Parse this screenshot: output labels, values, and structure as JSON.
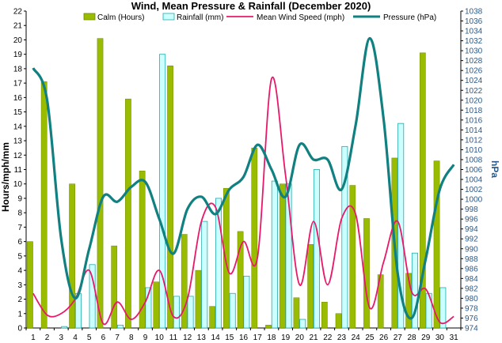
{
  "chart_data": {
    "type": "bar+line",
    "title": "Wind, Mean Pressure & Rainfall (December 2020)",
    "ylabel_left": "Hours/mph/mm",
    "ylabel_right": "hPa",
    "xlabel": "",
    "categories": [
      "1",
      "2",
      "3",
      "4",
      "5",
      "6",
      "7",
      "8",
      "9",
      "10",
      "11",
      "12",
      "13",
      "14",
      "15",
      "16",
      "17",
      "18",
      "19",
      "20",
      "21",
      "22",
      "23",
      "24",
      "25",
      "26",
      "27",
      "28",
      "29",
      "30",
      "31"
    ],
    "ylim_left": [
      0,
      22
    ],
    "ylim_right": [
      974,
      1038
    ],
    "left_ticks": [
      "0",
      "1",
      "2",
      "3",
      "4",
      "5",
      "6",
      "7",
      "8",
      "9",
      "10",
      "11",
      "12",
      "13",
      "14",
      "15",
      "16",
      "17",
      "18",
      "19",
      "20",
      "21",
      "22"
    ],
    "right_ticks": [
      "974",
      "976",
      "978",
      "980",
      "982",
      "984",
      "986",
      "988",
      "990",
      "992",
      "994",
      "996",
      "998",
      "1000",
      "1002",
      "1004",
      "1006",
      "1008",
      "1010",
      "1012",
      "1014",
      "1016",
      "1018",
      "1020",
      "1022",
      "1024",
      "1026",
      "1028",
      "1030",
      "1032",
      "1034",
      "1036",
      "1038"
    ],
    "legend_position": "top",
    "grid": false,
    "series": [
      {
        "name": "Calm (Hours)",
        "kind": "bar",
        "axis": "left",
        "color": "#99bb00",
        "values": [
          6.0,
          17.1,
          0,
          10.0,
          0,
          20.1,
          5.7,
          15.9,
          10.9,
          3.2,
          18.2,
          6.5,
          4.0,
          1.5,
          9.7,
          6.7,
          12.5,
          0.2,
          10.0,
          2.1,
          5.8,
          1.8,
          1.0,
          9.9,
          7.6,
          3.7,
          11.8,
          3.8,
          19.1,
          11.6,
          0
        ],
        "border": "#6f8800"
      },
      {
        "name": "Rainfall (mm)",
        "kind": "bar",
        "axis": "left",
        "color": "#ccffff",
        "values": [
          0,
          0,
          0.1,
          2.4,
          4.4,
          0,
          0.2,
          0,
          2.8,
          19.0,
          2.2,
          2.2,
          7.4,
          9.0,
          2.4,
          3.6,
          0,
          10.2,
          10.0,
          0.6,
          11.0,
          0,
          12.6,
          0,
          0,
          0,
          14.2,
          5.2,
          2.4,
          2.8,
          0
        ],
        "border": "#22aaaa"
      },
      {
        "name": "Mean Wind Speed (mph)",
        "kind": "line",
        "axis": "left",
        "color": "#e8186a",
        "values": [
          2.4,
          0.9,
          1.0,
          2.0,
          4.0,
          0.3,
          1.8,
          0.6,
          1.8,
          4.0,
          0.8,
          2.0,
          7.4,
          8.4,
          3.8,
          6.0,
          4.9,
          17.3,
          10.6,
          3.0,
          7.4,
          3.0,
          7.6,
          7.9,
          1.4,
          4.6,
          7.4,
          2.5,
          2.7,
          0.4,
          0.8
        ]
      },
      {
        "name": "Pressure (hPa)",
        "kind": "line",
        "axis": "right",
        "color": "#118080",
        "values": [
          1026.5,
          1020,
          992,
          980,
          990,
          1000.5,
          999.5,
          1002.5,
          1003.5,
          996,
          989,
          998,
          1000.5,
          997,
          1002,
          1004.5,
          1011,
          1006,
          1000.5,
          1011,
          1008,
          1008,
          1002,
          1015,
          1032.5,
          1016,
          985,
          976,
          988,
          1002,
          1007
        ]
      }
    ]
  }
}
